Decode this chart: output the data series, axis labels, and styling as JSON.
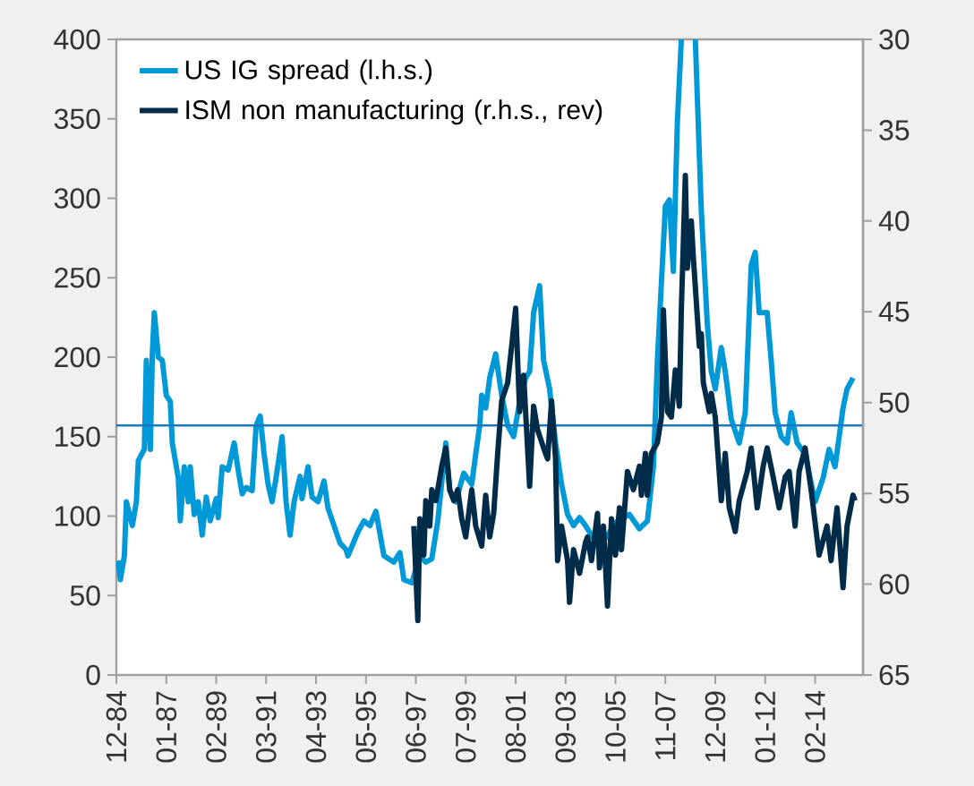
{
  "chart_data": {
    "type": "line",
    "series": [
      {
        "name": "US IG spread (l.h.s.)",
        "color": "#0099d8",
        "x": [
          "1985-01",
          "1985-02",
          "1985-04",
          "1985-05",
          "1985-08",
          "1985-10",
          "1985-11",
          "1986-02",
          "1986-03",
          "1986-05",
          "1986-06",
          "1986-07",
          "1986-09",
          "1986-11",
          "1987-01",
          "1987-03",
          "1987-04",
          "1987-07",
          "1987-08",
          "1987-10",
          "1987-12",
          "1988-01",
          "1988-03",
          "1988-05",
          "1988-07",
          "1988-09",
          "1988-11",
          "1989-02",
          "1989-03",
          "1989-05",
          "1989-08",
          "1989-11",
          "1990-01",
          "1990-03",
          "1990-05",
          "1990-08",
          "1990-10",
          "1990-12",
          "1991-02",
          "1991-04",
          "1991-06",
          "1991-08",
          "1991-11",
          "1992-01",
          "1992-03",
          "1992-05",
          "1992-08",
          "1992-09",
          "1992-12",
          "1993-02",
          "1993-05",
          "1993-08",
          "1993-10",
          "1994-01",
          "1994-04",
          "1994-07",
          "1994-08",
          "1995-01",
          "1995-04",
          "1995-07",
          "1995-10",
          "1996-02",
          "1996-07",
          "1996-10",
          "1996-12",
          "1997-04",
          "1997-08",
          "1997-11",
          "1998-02",
          "1998-05",
          "1998-09",
          "1998-11",
          "1999-02",
          "1999-06",
          "1999-10",
          "1999-12",
          "2000-02",
          "2000-03",
          "2000-05",
          "2000-07",
          "2000-10",
          "2001-01",
          "2001-04",
          "2001-07",
          "2001-10",
          "2002-01",
          "2002-03",
          "2002-05",
          "2002-08",
          "2002-10",
          "2003-01",
          "2003-04",
          "2003-07",
          "2003-10",
          "2004-01",
          "2004-04",
          "2004-07",
          "2004-11",
          "2005-05",
          "2005-11",
          "2006-05",
          "2006-10",
          "2007-02",
          "2007-05",
          "2007-07",
          "2007-11",
          "2008-01",
          "2008-03",
          "2008-05",
          "2008-07",
          "2008-10",
          "2009-02",
          "2009-05",
          "2009-08",
          "2009-10",
          "2009-12",
          "2010-03",
          "2010-05",
          "2010-08",
          "2010-12",
          "2011-03",
          "2011-06",
          "2011-08",
          "2011-10",
          "2012-02",
          "2012-04",
          "2012-06",
          "2012-09",
          "2012-12",
          "2013-02",
          "2013-05",
          "2013-09",
          "2014-02",
          "2014-06",
          "2014-09",
          "2014-12",
          "2015-04",
          "2015-06",
          "2015-09"
        ],
        "values": [
          72,
          60,
          75,
          109,
          94,
          109,
          135,
          142,
          198,
          142,
          202,
          228,
          200,
          198,
          176,
          172,
          146,
          124,
          97,
          131,
          109,
          131,
          101,
          109,
          88,
          112,
          97,
          111,
          99,
          131,
          129,
          146,
          129,
          114,
          118,
          116,
          157,
          163,
          139,
          120,
          109,
          124,
          150,
          109,
          88,
          109,
          125,
          111,
          131,
          112,
          109,
          122,
          105,
          94,
          83,
          79,
          75,
          90,
          97,
          94,
          103,
          75,
          71,
          77,
          60,
          58,
          75,
          71,
          73,
          97,
          146,
          116,
          109,
          127,
          120,
          139,
          157,
          176,
          168,
          187,
          202,
          176,
          157,
          150,
          172,
          187,
          191,
          228,
          245,
          198,
          180,
          146,
          120,
          101,
          94,
          99,
          94,
          86,
          86,
          97,
          101,
          92,
          97,
          131,
          198,
          295,
          299,
          254,
          348,
          400,
          null,
          400,
          292,
          221,
          191,
          180,
          206,
          191,
          161,
          146,
          165,
          258,
          266,
          228,
          228,
          198,
          165,
          150,
          146,
          165,
          146,
          139,
          109,
          124,
          142,
          131,
          168,
          180,
          187
        ]
      },
      {
        "name": "ISM non manufacturing (r.h.s., rev)",
        "color": "#002b49",
        "axis": "y2",
        "x": [
          "1997-05",
          "1997-07",
          "1997-08",
          "1997-10",
          "1997-11",
          "1998-01",
          "1998-02",
          "1998-04",
          "1998-07",
          "1998-09",
          "1998-11",
          "1999-01",
          "1999-03",
          "1999-05",
          "1999-07",
          "1999-10",
          "1999-12",
          "2000-03",
          "2000-05",
          "2000-07",
          "2000-09",
          "2000-11",
          "2001-01",
          "2001-04",
          "2001-06",
          "2001-08",
          "2001-10",
          "2001-12",
          "2002-03",
          "2002-05",
          "2002-07",
          "2002-10",
          "2002-12",
          "2003-02",
          "2003-04",
          "2003-05",
          "2003-07",
          "2003-10",
          "2003-11",
          "2004-01",
          "2004-04",
          "2004-07",
          "2004-08",
          "2004-10",
          "2005-01",
          "2005-02",
          "2005-04",
          "2005-06",
          "2005-08",
          "2005-10",
          "2005-12",
          "2006-01",
          "2006-04",
          "2006-07",
          "2006-10",
          "2006-11",
          "2007-01",
          "2007-02",
          "2007-04",
          "2007-07",
          "2007-09",
          "2007-10",
          "2007-12",
          "2008-02",
          "2008-04",
          "2008-06",
          "2008-07",
          "2008-09",
          "2008-10",
          "2008-12",
          "2009-01",
          "2009-04",
          "2009-05",
          "2009-06",
          "2009-09",
          "2009-10",
          "2009-12",
          "2010-03",
          "2010-05",
          "2010-07",
          "2010-10",
          "2010-12",
          "2011-04",
          "2011-06",
          "2011-09",
          "2011-12",
          "2012-02",
          "2012-05",
          "2012-08",
          "2012-11",
          "2013-01",
          "2013-04",
          "2013-06",
          "2013-09",
          "2013-12",
          "2014-04",
          "2014-08",
          "2014-10",
          "2015-01",
          "2015-04",
          "2015-06",
          "2015-09",
          "2015-10"
        ],
        "values": [
          56.8,
          62.0,
          56.4,
          58.4,
          55.4,
          56.8,
          54.8,
          55.4,
          53.5,
          52.5,
          54.8,
          55.4,
          54.8,
          56.4,
          57.4,
          54.8,
          56.8,
          57.9,
          55.1,
          57.4,
          56.1,
          52.8,
          49.9,
          48.9,
          46.9,
          44.8,
          50.5,
          48.5,
          54.6,
          50.2,
          51.5,
          52.5,
          53.1,
          49.9,
          53.1,
          58.7,
          56.8,
          58.7,
          61.0,
          58.1,
          59.4,
          57.7,
          57.4,
          58.7,
          56.1,
          59.1,
          56.8,
          61.2,
          56.4,
          58.4,
          55.8,
          58.1,
          53.8,
          54.8,
          53.5,
          55.1,
          52.8,
          55.1,
          52.8,
          52.2,
          50.8,
          44.9,
          50.5,
          50.8,
          48.2,
          50.2,
          44.9,
          37.5,
          42.6,
          40.0,
          42.0,
          46.9,
          46.2,
          48.9,
          50.5,
          49.5,
          50.8,
          55.4,
          52.8,
          55.8,
          57.1,
          55.4,
          53.8,
          52.5,
          55.8,
          53.5,
          52.5,
          54.1,
          55.8,
          54.1,
          53.8,
          56.8,
          53.8,
          52.5,
          54.8,
          58.4,
          56.8,
          58.7,
          55.8,
          60.2,
          56.8,
          55.1,
          55.4
        ]
      }
    ],
    "xlim": [
      "1984-12",
      "2016-02"
    ],
    "xticks": [
      {
        "value": "1984-12",
        "label": "12-84"
      },
      {
        "value": "1987-01",
        "label": "01-87"
      },
      {
        "value": "1989-02",
        "label": "02-89"
      },
      {
        "value": "1991-03",
        "label": "03-91"
      },
      {
        "value": "1993-04",
        "label": "04-93"
      },
      {
        "value": "1995-05",
        "label": "05-95"
      },
      {
        "value": "1997-06",
        "label": "06-97"
      },
      {
        "value": "1999-07",
        "label": "07-99"
      },
      {
        "value": "2001-08",
        "label": "08-01"
      },
      {
        "value": "2003-09",
        "label": "09-03"
      },
      {
        "value": "2005-10",
        "label": "10-05"
      },
      {
        "value": "2007-11",
        "label": "11-07"
      },
      {
        "value": "2009-12",
        "label": "12-09"
      },
      {
        "value": "2012-01",
        "label": "01-12"
      },
      {
        "value": "2014-02",
        "label": "02-14"
      }
    ],
    "ylim": [
      0,
      400
    ],
    "yticks": [
      0,
      50,
      100,
      150,
      200,
      250,
      300,
      350,
      400
    ],
    "y2lim": [
      65,
      30
    ],
    "y2ticks": [
      30,
      35,
      40,
      45,
      50,
      55,
      60,
      65
    ],
    "ref_lines": [
      {
        "axis": "y",
        "value": 157,
        "color": "#1b7bc0"
      }
    ],
    "legend": "top left"
  }
}
